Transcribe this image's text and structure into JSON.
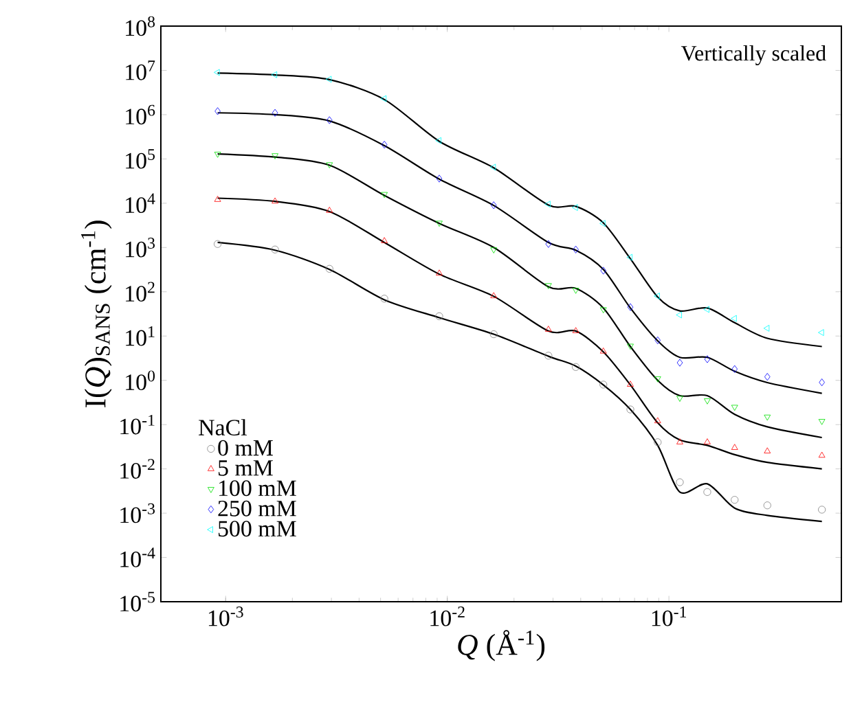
{
  "chart_data": {
    "type": "scatter",
    "xlabel": "*Q* (Å$^{-1}$)",
    "ylabel": "I(*Q*)$_{SANS}$ (cm$^{-1}$)",
    "legend_title": "NaCl",
    "legend": "bottom left",
    "log": "xy",
    "annotations": [
      "Vertically scaled"
    ],
    "xlim": [
      0.00051,
      0.6
    ],
    "xticks": [
      {
        "value": 0.001,
        "label": "10$^{-3}$"
      },
      {
        "value": 0.01,
        "label": "10$^{-2}$"
      },
      {
        "value": 0.1,
        "label": "10$^{-1}$"
      }
    ],
    "ylim": [
      1e-05,
      100000000
    ],
    "yticks": [
      {
        "value": 1e-05,
        "label": "10$^{-5}$"
      },
      {
        "value": 0.0001,
        "label": "10$^{-4}$"
      },
      {
        "value": 0.001,
        "label": "10$^{-3}$"
      },
      {
        "value": 0.01,
        "label": "10$^{-2}$"
      },
      {
        "value": 0.1,
        "label": "10$^{-1}$"
      },
      {
        "value": 1,
        "label": "10$^{0}$"
      },
      {
        "value": 10,
        "label": "10$^{1}$"
      },
      {
        "value": 100,
        "label": "10$^{2}$"
      },
      {
        "value": 1000,
        "label": "10$^{3}$"
      },
      {
        "value": 10000,
        "label": "10$^{4}$"
      },
      {
        "value": 100000,
        "label": "10$^{5}$"
      },
      {
        "value": 1000000,
        "label": "10$^{6}$"
      },
      {
        "value": 10000000,
        "label": "10$^{7}$"
      },
      {
        "value": 100000000,
        "label": "10$^{8}$"
      }
    ],
    "x": [
      0.00092,
      0.00167,
      0.00294,
      0.0052,
      0.0092,
      0.0162,
      0.0286,
      0.038,
      0.0506,
      0.067,
      0.089,
      0.112,
      0.149,
      0.198,
      0.278,
      0.49
    ],
    "series": [
      {
        "name": "0 mM",
        "color": "#808080",
        "marker": "circle",
        "values": [
          1200,
          900,
          330,
          70,
          28,
          11,
          3.6,
          2.0,
          0.8,
          0.22,
          0.04,
          0.005,
          0.003,
          0.002,
          0.0015,
          0.0012
        ]
      },
      {
        "name": "5 mM",
        "color": "#ff0000",
        "marker": "triangle",
        "values": [
          12000,
          11000,
          6800,
          1400,
          260,
          80,
          14,
          13,
          4.5,
          0.8,
          0.12,
          0.04,
          0.04,
          0.03,
          0.025,
          0.02
        ]
      },
      {
        "name": "100 mM",
        "color": "#00e000",
        "marker": "triangle_down",
        "values": [
          130000,
          120000,
          75000,
          16000,
          3600,
          900,
          140,
          110,
          40,
          6,
          1.1,
          0.4,
          0.35,
          0.25,
          0.15,
          0.12
        ]
      },
      {
        "name": "250 mM",
        "color": "#0000ff",
        "marker": "diamond",
        "values": [
          1200000,
          1100000,
          750000,
          210000,
          36000,
          9000,
          1200,
          900,
          300,
          45,
          8,
          2.5,
          3,
          1.8,
          1.2,
          0.9
        ]
      },
      {
        "name": "500 mM",
        "color": "#00ffff",
        "marker": "triangle_left",
        "values": [
          9000000,
          8000000,
          6300000,
          2300000,
          260000,
          65000,
          9500,
          8000,
          3500,
          600,
          80,
          30,
          40,
          25,
          15,
          12
        ]
      },
      {
        "type": "line",
        "color": "#000000",
        "values": [
          1300,
          870,
          320,
          66,
          26,
          11,
          3.5,
          2.1,
          0.79,
          0.22,
          0.034,
          0.003,
          0.0046,
          0.0013,
          0.00089,
          0.00065
        ]
      },
      {
        "type": "line",
        "color": "#000000",
        "values": [
          13000,
          11000,
          6500,
          1300,
          250,
          79,
          13,
          13,
          4.4,
          0.79,
          0.11,
          0.045,
          0.034,
          0.021,
          0.014,
          0.01
        ]
      },
      {
        "type": "line",
        "color": "#000000",
        "values": [
          130000,
          110000,
          72000,
          15000,
          3500,
          1000,
          130,
          120,
          43,
          5.8,
          1.0,
          0.45,
          0.45,
          0.17,
          0.089,
          0.051
        ]
      },
      {
        "type": "line",
        "color": "#000000",
        "values": [
          1100000,
          1000000,
          720000,
          200000,
          35000,
          8900,
          1300,
          870,
          320,
          43,
          7.8,
          3.3,
          3.3,
          1.6,
          0.89,
          0.51
        ]
      },
      {
        "type": "line",
        "color": "#000000",
        "values": [
          8700000,
          7900000,
          6200000,
          2200000,
          250000,
          63000,
          9100,
          8500,
          3600,
          560,
          76,
          37,
          43,
          20,
          8.9,
          5.8
        ]
      }
    ]
  }
}
